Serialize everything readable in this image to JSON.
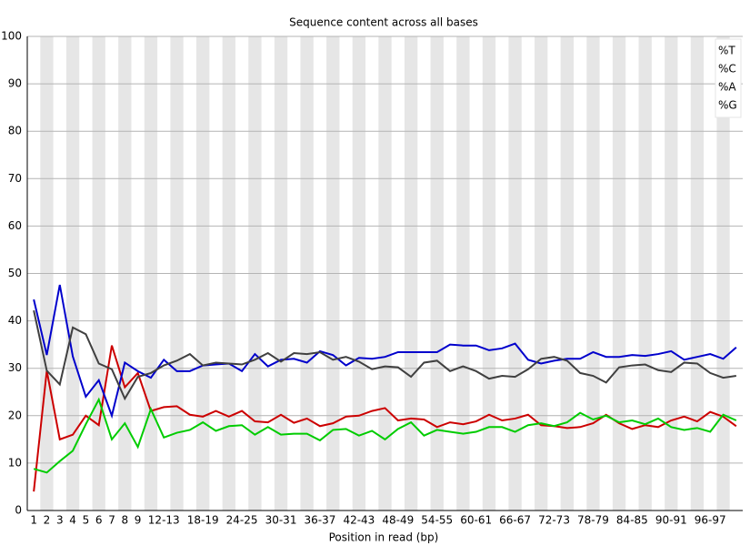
{
  "chart_data": {
    "type": "line",
    "title": "Sequence content across all bases",
    "x_label": "Position in read (bp)",
    "categories": [
      "1",
      "2",
      "3",
      "4",
      "5",
      "6",
      "7",
      "8",
      "9",
      null,
      "12-13",
      null,
      null,
      "18-19",
      null,
      null,
      "24-25",
      null,
      null,
      "30-31",
      null,
      null,
      "36-37",
      null,
      null,
      "42-43",
      null,
      null,
      "48-49",
      null,
      null,
      "54-55",
      null,
      null,
      "60-61",
      null,
      null,
      "66-67",
      null,
      null,
      "72-73",
      null,
      null,
      "78-79",
      null,
      null,
      "84-85",
      null,
      null,
      "90-91",
      null,
      null,
      "96-97",
      null,
      null
    ],
    "series": [
      {
        "name": "%T",
        "color": "#cc0000",
        "values": [
          4,
          29.5,
          15,
          16,
          20,
          18,
          34.8,
          26,
          29,
          21,
          21.8,
          22,
          20.2,
          19.8,
          21,
          19.8,
          21,
          18.8,
          18.6,
          20.2,
          18.5,
          19.4,
          17.8,
          18.4,
          19.8,
          20,
          21,
          21.6,
          19,
          19.4,
          19.2,
          17.6,
          18.6,
          18.2,
          18.8,
          20.2,
          19,
          19.4,
          20.2,
          18,
          17.8,
          17.4,
          17.6,
          18.4,
          20.2,
          18.4,
          17.2,
          18,
          17.6,
          19,
          19.8,
          18.8,
          20.8,
          19.8,
          17.8
        ]
      },
      {
        "name": "%C",
        "color": "#0000cc",
        "values": [
          44.5,
          32.8,
          47.6,
          32.5,
          24,
          27.5,
          20,
          31.2,
          29.4,
          28,
          31.8,
          29.4,
          29.4,
          30.6,
          30.8,
          31,
          29.4,
          33,
          30.4,
          31.8,
          32,
          31.2,
          33.6,
          32.8,
          30.6,
          32.2,
          32,
          32.4,
          33.4,
          33.4,
          33.4,
          33.4,
          35,
          34.8,
          34.8,
          33.8,
          34.2,
          35.2,
          31.8,
          31,
          31.6,
          32,
          32,
          33.4,
          32.4,
          32.4,
          32.8,
          32.6,
          33,
          33.6,
          31.8,
          32.4,
          33,
          32,
          34.4
        ]
      },
      {
        "name": "%A",
        "color": "#00cc00",
        "values": [
          8.8,
          8,
          10.4,
          12.6,
          18.2,
          23.4,
          15,
          18.4,
          13.4,
          21.4,
          15.4,
          16.4,
          17,
          18.6,
          16.8,
          17.8,
          18,
          16,
          17.6,
          16,
          16.2,
          16.2,
          14.8,
          17,
          17.2,
          15.8,
          16.8,
          15,
          17.2,
          18.6,
          15.8,
          17,
          16.6,
          16.2,
          16.6,
          17.6,
          17.6,
          16.6,
          18,
          18.4,
          17.8,
          18.6,
          20.6,
          19.2,
          20,
          18.6,
          19,
          18.2,
          19.4,
          17.6,
          17,
          17.4,
          16.6,
          20.2,
          19
        ]
      },
      {
        "name": "%G",
        "color": "#404040",
        "values": [
          42.2,
          29.5,
          26.6,
          38.6,
          37.2,
          31,
          29.8,
          23.6,
          28.2,
          29,
          30.6,
          31.6,
          33,
          30.6,
          31.2,
          31,
          30.8,
          31.8,
          33.2,
          31.4,
          33.2,
          33,
          33.4,
          31.8,
          32.4,
          31.4,
          29.8,
          30.4,
          30.2,
          28.2,
          31.2,
          31.6,
          29.4,
          30.4,
          29.4,
          27.8,
          28.4,
          28.2,
          29.8,
          32,
          32.4,
          31.6,
          29,
          28.4,
          27,
          30.2,
          30.6,
          30.8,
          29.6,
          29.2,
          31.2,
          31,
          29,
          28,
          28.4
        ]
      }
    ],
    "ylim": [
      0,
      100
    ],
    "yticks": [
      0,
      10,
      20,
      30,
      40,
      50,
      60,
      70,
      80,
      90,
      100
    ],
    "grid": true,
    "legend": "top-right"
  }
}
